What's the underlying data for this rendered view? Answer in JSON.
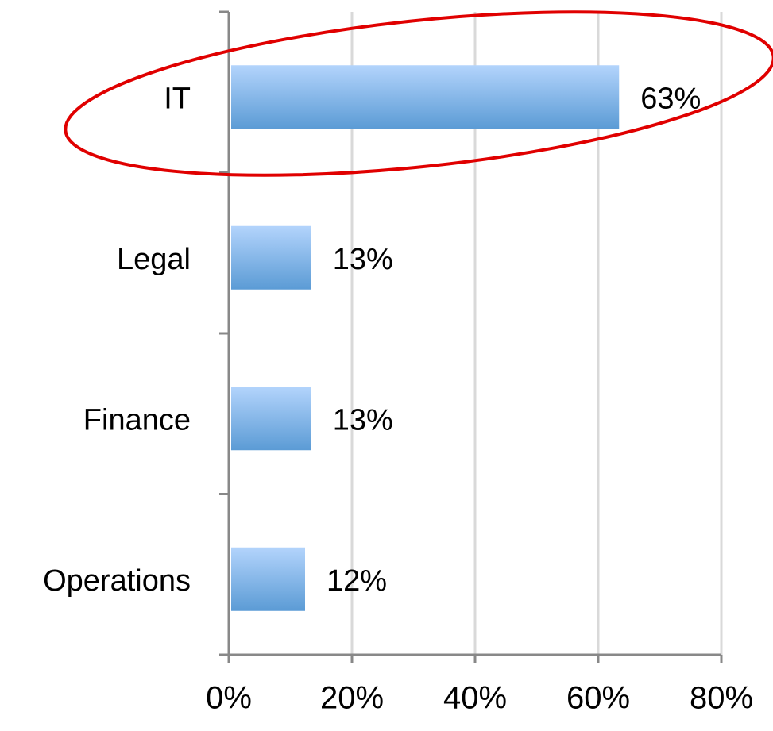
{
  "chart_data": {
    "type": "hbar",
    "categories": [
      "IT",
      "Legal",
      "Finance",
      "Operations"
    ],
    "values": [
      63,
      13,
      13,
      12
    ],
    "value_labels": [
      "63%",
      "13%",
      "13%",
      "12%"
    ],
    "color": "#5b9bd5",
    "xlim": [
      0,
      80
    ],
    "xticks": [
      {
        "value": 0,
        "label": "0%"
      },
      {
        "value": 20,
        "label": "20%"
      },
      {
        "value": 40,
        "label": "40%"
      },
      {
        "value": 60,
        "label": "60%"
      },
      {
        "value": 80,
        "label": "80%"
      }
    ],
    "grid": true
  }
}
